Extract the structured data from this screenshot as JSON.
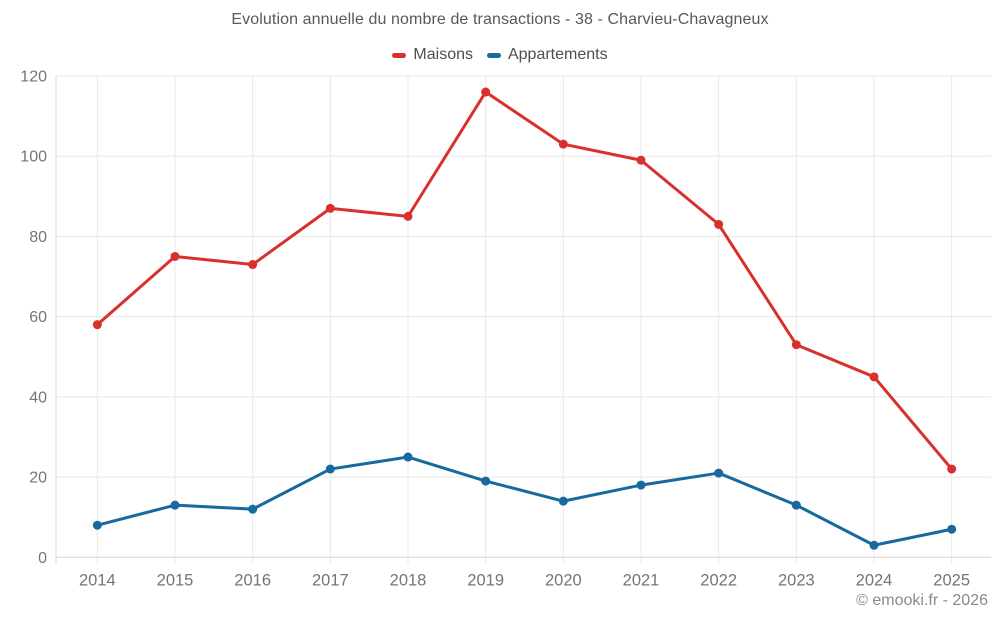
{
  "page": {
    "title": "Evolution annuelle du nombre de transactions - 38 - Charvieu-Chavagneux",
    "footer_credit": "© emooki.fr - 2026"
  },
  "colors": {
    "maisons": "#d8302c",
    "appartements": "#17699e",
    "gridline": "#e8e8e8",
    "axis_line": "#d9d9d9",
    "tick_label": "#757575",
    "title_text": "#595959",
    "legend_text": "#4f4f4f",
    "footer_text": "#8a8a8a",
    "background": "#ffffff"
  },
  "chart_data": {
    "type": "line",
    "title": "Evolution annuelle du nombre de transactions - 38 - Charvieu-Chavagneux",
    "categories": [
      "2014",
      "2015",
      "2016",
      "2017",
      "2018",
      "2019",
      "2020",
      "2021",
      "2022",
      "2023",
      "2024",
      "2025"
    ],
    "series": [
      {
        "name": "Maisons",
        "color": "#d8302c",
        "values": [
          58,
          75,
          73,
          87,
          85,
          116,
          103,
          99,
          83,
          53,
          45,
          22
        ]
      },
      {
        "name": "Appartements",
        "color": "#17699e",
        "values": [
          8,
          13,
          12,
          22,
          25,
          19,
          14,
          18,
          21,
          13,
          3,
          7
        ]
      }
    ],
    "xlabel": "",
    "ylabel": "",
    "ylim": [
      0,
      120
    ],
    "yticks": [
      0,
      20,
      40,
      60,
      80,
      100,
      120
    ],
    "grid": true,
    "legend_position": "top",
    "marker": "circle"
  }
}
